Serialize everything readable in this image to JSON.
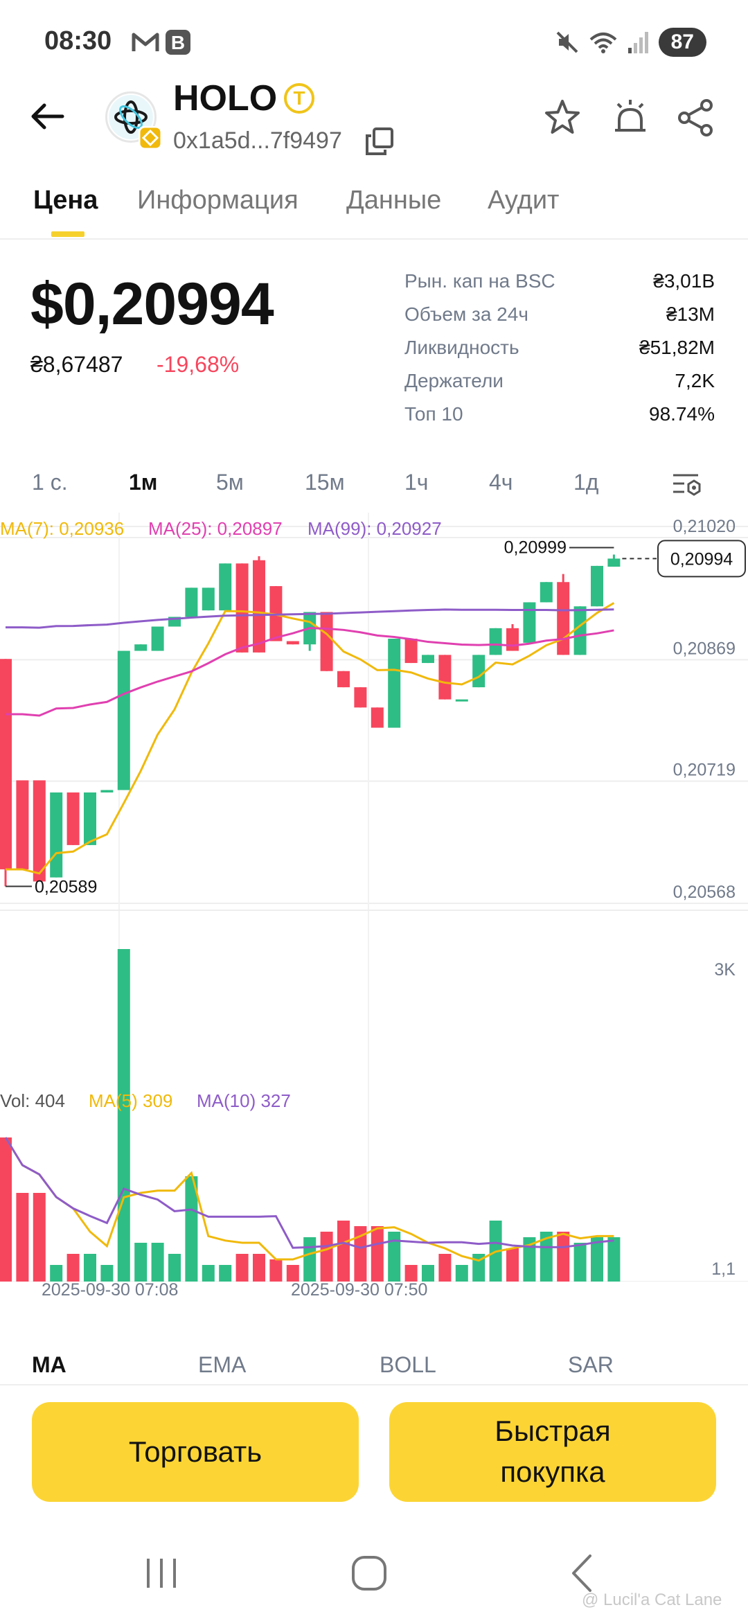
{
  "status_bar": {
    "time": "08:30",
    "battery": "87",
    "icons_left": [
      "gmail-icon",
      "b-app-icon"
    ],
    "icons_right": [
      "mute-icon",
      "wifi-icon",
      "signal-icon"
    ]
  },
  "header": {
    "token_name": "HOLO",
    "token_badge": "T",
    "token_address": "0x1a5d...7f9497"
  },
  "tabs": [
    {
      "label": "Цена",
      "active": true
    },
    {
      "label": "Информация",
      "active": false
    },
    {
      "label": "Данные",
      "active": false
    },
    {
      "label": "Аудит",
      "active": false
    }
  ],
  "price": {
    "usd": "$0,20994",
    "uah": "₴8,67487",
    "change": "-19,68%"
  },
  "stats": [
    {
      "label": "Рын. кап на BSC",
      "value": "₴3,01B"
    },
    {
      "label": "Объем за 24ч",
      "value": "₴13M"
    },
    {
      "label": "Ликвидность",
      "value": "₴51,82M"
    },
    {
      "label": "Держатели",
      "value": "7,2K"
    },
    {
      "label": "Топ 10",
      "value": "98.74%"
    }
  ],
  "timeframes": [
    {
      "label": "1 с.",
      "active": false
    },
    {
      "label": "1м",
      "active": true
    },
    {
      "label": "5м",
      "active": false
    },
    {
      "label": "15м",
      "active": false
    },
    {
      "label": "1ч",
      "active": false
    },
    {
      "label": "4ч",
      "active": false
    },
    {
      "label": "1д",
      "active": false
    }
  ],
  "ma_legend": {
    "ma7": "MA(7): 0,20936",
    "ma25": "MA(25): 0,20897",
    "ma99": "MA(99): 0,20927"
  },
  "vol_legend": {
    "vol": "Vol: 404",
    "ma5": "MA(5) 309",
    "ma10": "MA(10) 327"
  },
  "colors": {
    "up": "#2ebd85",
    "down": "#f6465d",
    "ma7": "#f0b90b",
    "ma25": "#e040b0",
    "ma99": "#8e5cc8",
    "accent": "#fcd535"
  },
  "chart_data": {
    "type": "candlestick",
    "price_axis_labels": [
      "0,21020",
      "0,20869",
      "0,20719",
      "0,20568"
    ],
    "price_axis_values": [
      0.2102,
      0.20869,
      0.20719,
      0.20568
    ],
    "current_price_label": "0,20994",
    "high_label": "0,20999",
    "low_label": "0,20589",
    "time_labels": [
      "2025-09-30 07:08",
      "2025-09-30 07:50"
    ],
    "volume_axis_labels": [
      "3K",
      "1,1"
    ],
    "candles": [
      {
        "o": 0.2087,
        "h": 0.2087,
        "c": 0.2061,
        "l": 0.20589
      },
      {
        "o": 0.2072,
        "h": 0.2072,
        "c": 0.2061,
        "l": 0.2061
      },
      {
        "o": 0.2072,
        "h": 0.2072,
        "c": 0.20595,
        "l": 0.20595
      },
      {
        "o": 0.206,
        "h": 0.20705,
        "c": 0.20705,
        "l": 0.206
      },
      {
        "o": 0.20705,
        "h": 0.20705,
        "c": 0.2064,
        "l": 0.2064
      },
      {
        "o": 0.2064,
        "h": 0.20705,
        "c": 0.20705,
        "l": 0.2064
      },
      {
        "o": 0.20705,
        "h": 0.20708,
        "c": 0.20708,
        "l": 0.20705
      },
      {
        "o": 0.20708,
        "h": 0.2088,
        "c": 0.2088,
        "l": 0.20708
      },
      {
        "o": 0.2088,
        "h": 0.20888,
        "c": 0.20888,
        "l": 0.2088
      },
      {
        "o": 0.2088,
        "h": 0.2091,
        "c": 0.2091,
        "l": 0.2088
      },
      {
        "o": 0.2091,
        "h": 0.20922,
        "c": 0.20922,
        "l": 0.2091
      },
      {
        "o": 0.20922,
        "h": 0.20958,
        "c": 0.20958,
        "l": 0.20922
      },
      {
        "o": 0.2093,
        "h": 0.20958,
        "c": 0.20958,
        "l": 0.2093
      },
      {
        "o": 0.2093,
        "h": 0.20988,
        "c": 0.20988,
        "l": 0.2093
      },
      {
        "o": 0.20988,
        "h": 0.20988,
        "c": 0.20878,
        "l": 0.20878
      },
      {
        "o": 0.20992,
        "h": 0.20997,
        "c": 0.20878,
        "l": 0.20878
      },
      {
        "o": 0.2096,
        "h": 0.2096,
        "c": 0.20892,
        "l": 0.20892
      },
      {
        "o": 0.20892,
        "h": 0.20892,
        "c": 0.20888,
        "l": 0.20888
      },
      {
        "o": 0.20888,
        "h": 0.20928,
        "c": 0.20928,
        "l": 0.2088
      },
      {
        "o": 0.20928,
        "h": 0.20928,
        "c": 0.20855,
        "l": 0.20855
      },
      {
        "o": 0.20855,
        "h": 0.20855,
        "c": 0.20835,
        "l": 0.20835
      },
      {
        "o": 0.20835,
        "h": 0.20835,
        "c": 0.2081,
        "l": 0.2081
      },
      {
        "o": 0.2081,
        "h": 0.2081,
        "c": 0.20785,
        "l": 0.20785
      },
      {
        "o": 0.20785,
        "h": 0.20895,
        "c": 0.20895,
        "l": 0.20785
      },
      {
        "o": 0.20895,
        "h": 0.20895,
        "c": 0.20865,
        "l": 0.20865
      },
      {
        "o": 0.20865,
        "h": 0.20875,
        "c": 0.20875,
        "l": 0.20865
      },
      {
        "o": 0.20875,
        "h": 0.20875,
        "c": 0.2082,
        "l": 0.2082
      },
      {
        "o": 0.2082,
        "h": 0.2082,
        "c": 0.2082,
        "l": 0.2082
      },
      {
        "o": 0.20835,
        "h": 0.20875,
        "c": 0.20875,
        "l": 0.20835
      },
      {
        "o": 0.20875,
        "h": 0.20908,
        "c": 0.20908,
        "l": 0.20875
      },
      {
        "o": 0.20908,
        "h": 0.20913,
        "c": 0.2088,
        "l": 0.2088
      },
      {
        "o": 0.2089,
        "h": 0.2094,
        "c": 0.2094,
        "l": 0.2089
      },
      {
        "o": 0.2094,
        "h": 0.20965,
        "c": 0.20965,
        "l": 0.2094
      },
      {
        "o": 0.20965,
        "h": 0.20975,
        "c": 0.20875,
        "l": 0.20875
      },
      {
        "o": 0.20875,
        "h": 0.20935,
        "c": 0.20935,
        "l": 0.20875
      },
      {
        "o": 0.20935,
        "h": 0.20985,
        "c": 0.20985,
        "l": 0.20935
      },
      {
        "o": 0.20984,
        "h": 0.20999,
        "c": 0.20994,
        "l": 0.20984
      }
    ],
    "volumes": [
      1300,
      800,
      800,
      150,
      250,
      250,
      150,
      3000,
      350,
      350,
      250,
      950,
      150,
      150,
      250,
      250,
      200,
      150,
      400,
      450,
      550,
      500,
      500,
      450,
      150,
      150,
      250,
      150,
      250,
      550,
      300,
      400,
      450,
      450,
      350,
      400,
      400
    ]
  },
  "indicator_tabs": [
    {
      "label": "MA",
      "active": true
    },
    {
      "label": "EMA",
      "active": false
    },
    {
      "label": "BOLL",
      "active": false
    },
    {
      "label": "SAR",
      "active": false
    }
  ],
  "actions": {
    "trade": "Торговать",
    "quick_buy": "Быстрая покупка"
  },
  "watermark": "@ Lucil'a Cat Lane"
}
